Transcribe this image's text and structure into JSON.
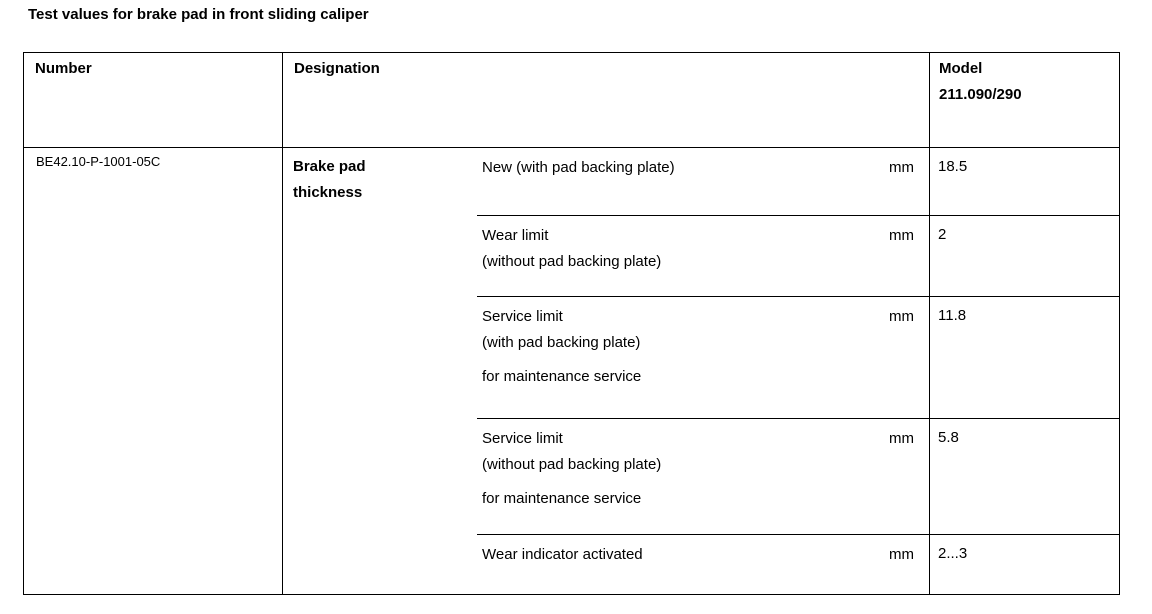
{
  "page": {
    "title": "Test values for brake pad in front sliding caliper"
  },
  "table": {
    "headers": {
      "number": "Number",
      "designation": "Designation",
      "model": [
        "Model",
        "211.090/290"
      ]
    },
    "row": {
      "number": "BE42.10-P-1001-05C",
      "designation": [
        "Brake pad",
        "thickness"
      ],
      "sub_rows": [
        {
          "lines": [
            "New (with pad backing plate)"
          ],
          "unit": "mm",
          "value": "18.5"
        },
        {
          "lines": [
            "Wear limit",
            "(without pad backing plate)"
          ],
          "unit": "mm",
          "value": "2"
        },
        {
          "lines": [
            "Service limit",
            "(with pad backing plate)"
          ],
          "note": "for maintenance service",
          "unit": "mm",
          "value": "11.8"
        },
        {
          "lines": [
            "Service limit",
            "(without pad backing plate)"
          ],
          "note": "for maintenance service",
          "unit": "mm",
          "value": "5.8"
        },
        {
          "lines": [
            "Wear indicator activated"
          ],
          "unit": "mm",
          "value": "2...3"
        }
      ]
    }
  }
}
